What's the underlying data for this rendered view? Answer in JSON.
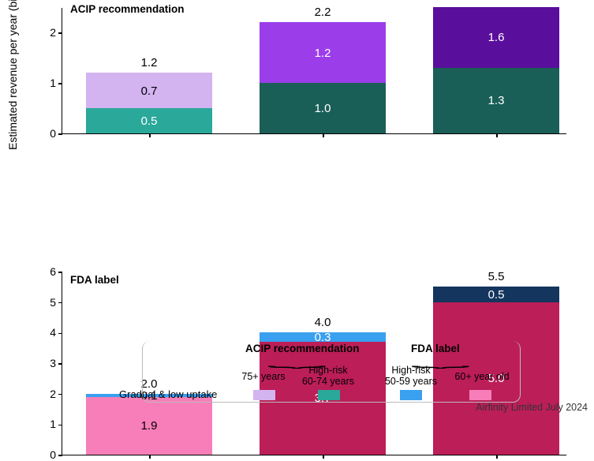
{
  "y_axis_label": "Estimated revenue per year (billion $)",
  "footer": "Airfinity Limited July 2024",
  "colors": {
    "acip_75_low": "#d3b3f0",
    "acip_75_high": "#9b3eea",
    "acip_6074_low": "#2aa89a",
    "acip_6074_high": "#1a5e58",
    "fda_5059_low": "#3aa0f0",
    "fda_5059_high": "#14355e",
    "fda_60_low": "#f77eb8",
    "fda_60_high": "#bc1e57"
  },
  "panel_top": {
    "title": "ACIP recommendation",
    "ylim": [
      0,
      2.5
    ],
    "yticks": [
      0,
      1,
      2
    ],
    "bars": [
      {
        "total": "1.2",
        "segments": [
          {
            "value": 0.5,
            "label": "0.5",
            "color_key": "acip_6074_low",
            "label_color": "#ffffff"
          },
          {
            "value": 0.7,
            "label": "0.7",
            "color_key": "acip_75_low",
            "label_color": "#000000"
          }
        ]
      },
      {
        "total": "2.2",
        "segments": [
          {
            "value": 1.0,
            "label": "1.0",
            "color_key": "acip_6074_high",
            "label_color": "#ffffff"
          },
          {
            "value": 1.2,
            "label": "1.2",
            "color_key": "acip_75_high",
            "label_color": "#ffffff"
          }
        ]
      },
      {
        "total": "",
        "segments": [
          {
            "value": 1.3,
            "label": "1.3",
            "color_key": "acip_6074_high",
            "label_color": "#ffffff"
          },
          {
            "value": 1.6,
            "label": "1.6",
            "color_key": "acip_75_high",
            "label_alt": "#5a0e9c",
            "label_color": "#ffffff"
          }
        ],
        "clipped_at": 2.5
      }
    ]
  },
  "panel_bottom": {
    "title": "FDA label",
    "ylim": [
      0,
      6
    ],
    "yticks": [
      0,
      1,
      2,
      3,
      4,
      5,
      6
    ],
    "bars": [
      {
        "total": "2.0",
        "segments": [
          {
            "value": 1.9,
            "label": "1.9",
            "color_key": "fda_60_low",
            "label_color": "#000000"
          },
          {
            "value": 0.1,
            "label": "0.1",
            "color_key": "fda_5059_low",
            "label_color": "#000000",
            "thin": true
          }
        ]
      },
      {
        "total": "4.0",
        "segments": [
          {
            "value": 3.7,
            "label": "3.7",
            "color_key": "fda_60_high",
            "label_alt_color": "#e36aa0",
            "label_color": "#ffffff"
          },
          {
            "value": 0.3,
            "label": "0.3",
            "color_key": "fda_5059_low",
            "label_alt_color": "#1d6fd6",
            "label_color": "#ffffff",
            "thin": true
          }
        ]
      },
      {
        "total": "5.5",
        "segments": [
          {
            "value": 5.0,
            "label": "5.0",
            "color_key": "fda_60_high",
            "label_color": "#ffffff"
          },
          {
            "value": 0.5,
            "label": "0.5",
            "color_key": "fda_5059_high",
            "label_color": "#ffffff",
            "thin": true
          }
        ]
      }
    ]
  },
  "legend": {
    "acip_heading": "ACIP recommendation",
    "fda_heading": "FDA label",
    "col1": "75+ years",
    "col2": "High-risk\n60-74 years",
    "col3": "High-risk\n50-59 years",
    "col4": "60+ year old",
    "row_label": "Gradual & low uptake"
  }
}
